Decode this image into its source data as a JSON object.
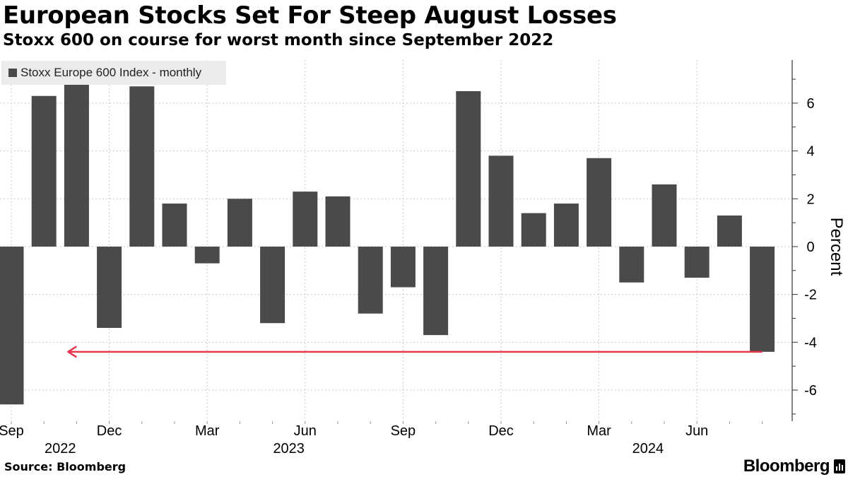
{
  "header": {
    "title": "European Stocks Set For Steep August Losses",
    "subtitle": "Stoxx 600 on course for worst month since September 2022"
  },
  "legend": {
    "label": "Stoxx Europe 600 Index - monthly"
  },
  "footer": {
    "source": "Source: Bloomberg",
    "brand": "Bloomberg"
  },
  "colors": {
    "bar": "#4a4a4a",
    "arrow": "#e8364d",
    "grid": "#c8c8c8",
    "axis": "#333333"
  },
  "chart_data": {
    "type": "bar",
    "series_name": "Stoxx Europe 600 Index - monthly",
    "categories": [
      "Sep 2022",
      "Oct 2022",
      "Nov 2022",
      "Dec 2022",
      "Jan 2023",
      "Feb 2023",
      "Mar 2023",
      "Apr 2023",
      "May 2023",
      "Jun 2023",
      "Jul 2023",
      "Aug 2023",
      "Sep 2023",
      "Oct 2023",
      "Nov 2023",
      "Dec 2023",
      "Jan 2024",
      "Feb 2024",
      "Mar 2024",
      "Apr 2024",
      "May 2024",
      "Jun 2024",
      "Jul 2024",
      "Aug 2024"
    ],
    "values": [
      -6.6,
      6.3,
      6.8,
      -3.4,
      6.7,
      1.8,
      -0.7,
      2.0,
      -3.2,
      2.3,
      2.1,
      -2.8,
      -1.7,
      -3.7,
      6.5,
      3.8,
      1.4,
      1.8,
      3.7,
      -1.5,
      2.6,
      -1.3,
      1.3,
      -4.4
    ],
    "ylabel": "Percent",
    "ylim": [
      -7.3,
      7.8
    ],
    "yticks": [
      -6,
      -4,
      -2,
      0,
      2,
      4,
      6
    ],
    "x_tick_labels": [
      {
        "index": 0,
        "label": "Sep"
      },
      {
        "index": 3,
        "label": "Dec"
      },
      {
        "index": 6,
        "label": "Mar"
      },
      {
        "index": 9,
        "label": "Jun"
      },
      {
        "index": 12,
        "label": "Sep"
      },
      {
        "index": 15,
        "label": "Dec"
      },
      {
        "index": 18,
        "label": "Mar"
      },
      {
        "index": 21,
        "label": "Jun"
      }
    ],
    "year_labels": [
      {
        "index": 1.5,
        "label": "2022"
      },
      {
        "index": 8.5,
        "label": "2023"
      },
      {
        "index": 19.5,
        "label": "2024"
      }
    ],
    "annotation": {
      "type": "arrow",
      "from_index": 23,
      "to_index": 2,
      "y_value": -4.4
    }
  }
}
